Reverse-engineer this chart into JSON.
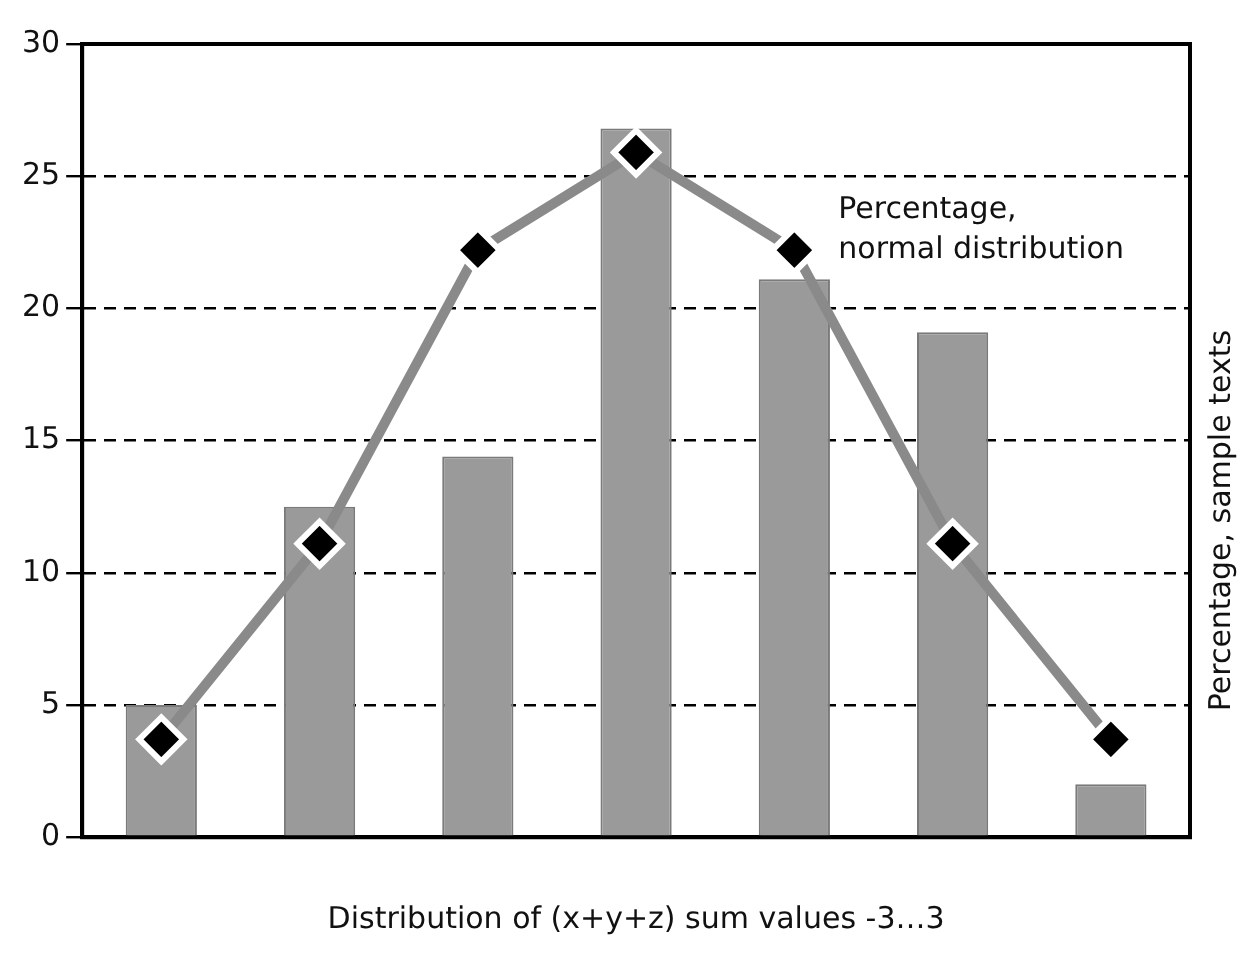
{
  "chart_data": {
    "type": "bar",
    "xlabel": "Distribution of (x+y+z) sum values -3…3",
    "y2label": "Percentage, sample texts",
    "categories": [
      null,
      null,
      null,
      null,
      null,
      null,
      null
    ],
    "series": [
      {
        "color": "#9a9a9a",
        "values": [
          5,
          12.5,
          14.4,
          26.8,
          21.1,
          19.1,
          2
        ]
      },
      {
        "name": "Percentage, normal distribution",
        "type": "line",
        "color": "#8a8a8a",
        "values": [
          3.7,
          11.1,
          22.2,
          25.9,
          22.2,
          11.1,
          3.7
        ]
      }
    ],
    "ylim": [
      0,
      30
    ],
    "yticks": [
      0,
      5,
      10,
      15,
      20,
      25,
      30
    ],
    "grid": "y",
    "legend": false,
    "marker": "diamond",
    "line_style": "solid"
  }
}
